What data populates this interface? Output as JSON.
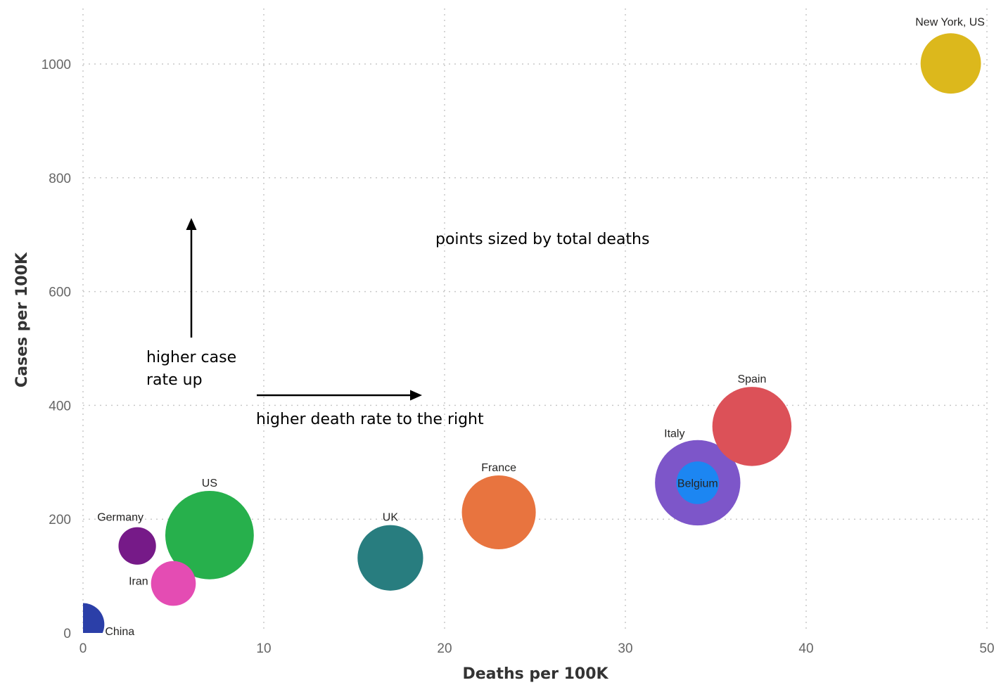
{
  "chart_data": {
    "type": "scatter",
    "xlabel": "Deaths per 100K",
    "ylabel": "Cases per 100K",
    "xlim": [
      0,
      50
    ],
    "ylim": [
      0,
      1100
    ],
    "x_ticks": [
      0,
      10,
      20,
      30,
      40,
      50
    ],
    "y_ticks": [
      0,
      200,
      400,
      600,
      800,
      1000
    ],
    "grid": true,
    "size_encoding": "total deaths",
    "points": [
      {
        "name": "China",
        "x": 0,
        "y": 15,
        "r_rel": 0.41,
        "color": "#2b3fa8"
      },
      {
        "name": "Germany",
        "x": 3,
        "y": 153,
        "r_rel": 0.36,
        "color": "#761a88"
      },
      {
        "name": "Iran",
        "x": 5,
        "y": 87,
        "r_rel": 0.43,
        "color": "#e44cb3"
      },
      {
        "name": "US",
        "x": 7,
        "y": 172,
        "r_rel": 0.85,
        "color": "#27b04c"
      },
      {
        "name": "UK",
        "x": 17,
        "y": 132,
        "r_rel": 0.63,
        "color": "#287d7f"
      },
      {
        "name": "France",
        "x": 23,
        "y": 212,
        "r_rel": 0.71,
        "color": "#e8743f"
      },
      {
        "name": "Italy",
        "x": 34,
        "y": 264,
        "r_rel": 0.82,
        "color": "#7d56c9"
      },
      {
        "name": "Belgium",
        "x": 34,
        "y": 264,
        "r_rel": 0.41,
        "color": "#1c86f2"
      },
      {
        "name": "Spain",
        "x": 37,
        "y": 363,
        "r_rel": 0.76,
        "color": "#dc5158"
      },
      {
        "name": "New York, US",
        "x": 48,
        "y": 1001,
        "r_rel": 0.58,
        "color": "#dcb81c"
      }
    ],
    "annotations": {
      "size_note": "points sized by total deaths",
      "up_note_line1": "higher case",
      "up_note_line2": "rate up",
      "right_note": "higher death rate to the right"
    }
  }
}
